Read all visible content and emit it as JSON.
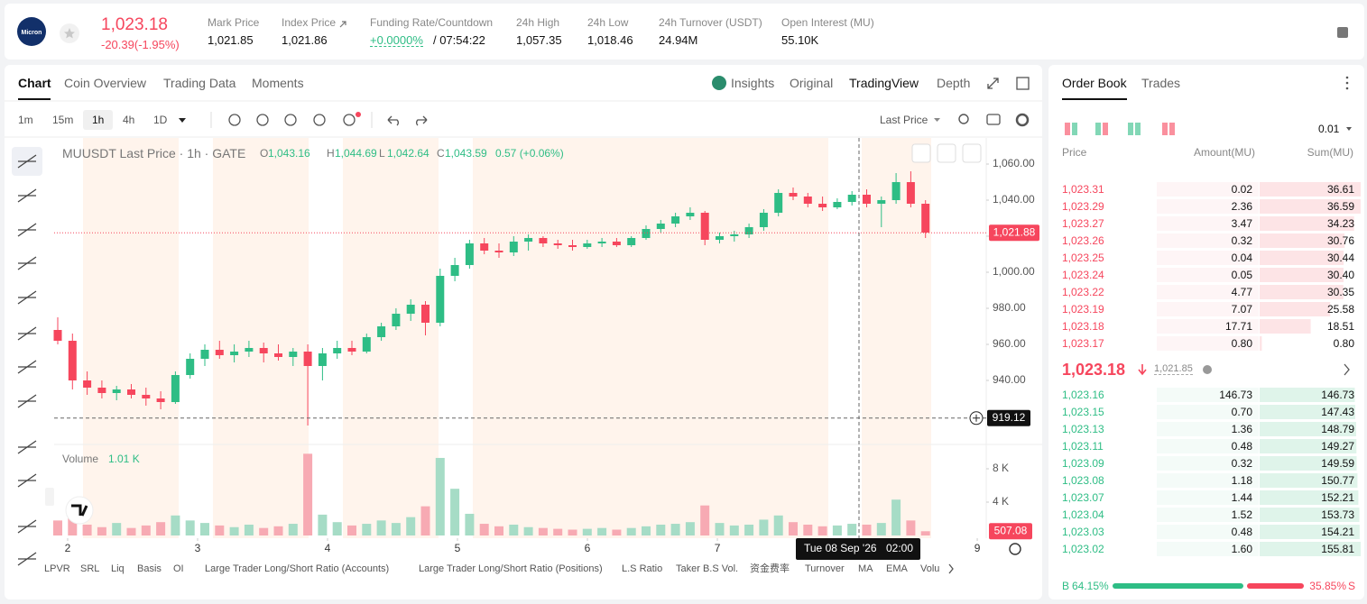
{
  "header": {
    "logo": "Micron",
    "price": "1,023.18",
    "change": "-20.39(-1.95%)",
    "stats": [
      {
        "label": "Mark Price",
        "value": "1,021.85"
      },
      {
        "label": "Index Price",
        "value": "1,021.86"
      },
      {
        "label": "Funding Rate/Countdown",
        "value": "+0.0000%",
        "extra": "/ 07:54:22"
      },
      {
        "label": "24h High",
        "value": "1,057.35"
      },
      {
        "label": "24h Low",
        "value": "1,018.46"
      },
      {
        "label": "24h Turnover (USDT)",
        "value": "24.94M"
      },
      {
        "label": "Open Interest (MU)",
        "value": "55.10K"
      }
    ]
  },
  "tabs": {
    "main": [
      "Chart",
      "Coin Overview",
      "Trading Data",
      "Moments"
    ],
    "views": [
      "Insights",
      "Original",
      "TradingView",
      "Depth"
    ]
  },
  "toolbar": {
    "intervals": [
      "1m",
      "15m",
      "1h",
      "4h",
      "1D"
    ],
    "price_type": "Last Price"
  },
  "chart_data": {
    "type": "candlestick",
    "title": "MUUSDT Last Price · 1h · GATE",
    "ohlc": [
      {
        "label": "O",
        "value": "1,043.16"
      },
      {
        "label": "H",
        "value": "1,044.69"
      },
      {
        "label": "L",
        "value": "1,042.64"
      },
      {
        "label": "C",
        "value": "1,043.59"
      }
    ],
    "change": "0.57 (+0.06%)",
    "candles": [
      [
        968,
        975,
        960,
        962
      ],
      [
        962,
        966,
        935,
        940
      ],
      [
        940,
        945,
        932,
        936
      ],
      [
        936,
        940,
        930,
        933
      ],
      [
        933,
        937,
        929,
        935
      ],
      [
        935,
        938,
        930,
        932
      ],
      [
        932,
        936,
        926,
        930
      ],
      [
        930,
        934,
        924,
        928
      ],
      [
        928,
        945,
        927,
        943
      ],
      [
        943,
        955,
        941,
        952
      ],
      [
        952,
        960,
        948,
        957
      ],
      [
        957,
        962,
        952,
        954
      ],
      [
        954,
        960,
        950,
        956
      ],
      [
        956,
        962,
        953,
        958
      ],
      [
        958,
        961,
        950,
        955
      ],
      [
        955,
        960,
        951,
        953
      ],
      [
        953,
        958,
        948,
        956
      ],
      [
        956,
        960,
        915,
        948
      ],
      [
        948,
        958,
        940,
        955
      ],
      [
        955,
        962,
        952,
        958
      ],
      [
        958,
        962,
        954,
        956
      ],
      [
        956,
        966,
        955,
        964
      ],
      [
        964,
        972,
        962,
        970
      ],
      [
        970,
        980,
        968,
        977
      ],
      [
        977,
        985,
        973,
        982
      ],
      [
        982,
        984,
        965,
        972
      ],
      [
        972,
        1002,
        970,
        998
      ],
      [
        998,
        1008,
        995,
        1004
      ],
      [
        1004,
        1018,
        1002,
        1016
      ],
      [
        1016,
        1019,
        1010,
        1012
      ],
      [
        1012,
        1016,
        1008,
        1011
      ],
      [
        1011,
        1020,
        1009,
        1017
      ],
      [
        1017,
        1021,
        1012,
        1019
      ],
      [
        1019,
        1020,
        1014,
        1016
      ],
      [
        1016,
        1018,
        1013,
        1015
      ],
      [
        1015,
        1018,
        1012,
        1014
      ],
      [
        1014,
        1018,
        1013,
        1016
      ],
      [
        1016,
        1019,
        1014,
        1017
      ],
      [
        1017,
        1019,
        1014,
        1015
      ],
      [
        1015,
        1020,
        1014,
        1019
      ],
      [
        1019,
        1026,
        1018,
        1024
      ],
      [
        1024,
        1029,
        1022,
        1027
      ],
      [
        1027,
        1033,
        1025,
        1031
      ],
      [
        1031,
        1036,
        1029,
        1033
      ],
      [
        1033,
        1034,
        1015,
        1018
      ],
      [
        1018,
        1022,
        1016,
        1020
      ],
      [
        1020,
        1023,
        1017,
        1021
      ],
      [
        1021,
        1027,
        1019,
        1025
      ],
      [
        1025,
        1035,
        1023,
        1033
      ],
      [
        1033,
        1046,
        1031,
        1044
      ],
      [
        1044,
        1047,
        1040,
        1042
      ],
      [
        1042,
        1044,
        1036,
        1038
      ],
      [
        1038,
        1042,
        1034,
        1036
      ],
      [
        1036,
        1041,
        1035,
        1039
      ],
      [
        1039,
        1045,
        1037,
        1043
      ],
      [
        1043,
        1046,
        1036,
        1038
      ],
      [
        1038,
        1042,
        1025,
        1040
      ],
      [
        1040,
        1055,
        1038,
        1050
      ],
      [
        1050,
        1056,
        1036,
        1038
      ],
      [
        1038,
        1040,
        1019,
        1022
      ]
    ],
    "ylim": [
      905,
      1074.5
    ],
    "yticks": [
      {
        "value": 1060,
        "label": "1,060.00"
      },
      {
        "value": 1040,
        "label": "1,040.00"
      },
      {
        "value": 1020,
        "label": "1,020.00"
      },
      {
        "value": 1000,
        "label": "1,000.00"
      },
      {
        "value": 980,
        "label": "980.00"
      },
      {
        "value": 960,
        "label": "960.00"
      },
      {
        "value": 940,
        "label": "940.00"
      }
    ],
    "last_price": {
      "value": 1021.88,
      "label": "1,021.88"
    },
    "crosshair_price": 919.12,
    "crosshair_time": [
      "Tue 08 Sep '26",
      "02:00"
    ],
    "xlim": [
      1.896,
      9.069
    ],
    "xticks": [
      2,
      3,
      4,
      5,
      6,
      7,
      9
    ],
    "volume": {
      "title": "Volume",
      "value_label": "1.01 K",
      "values": [
        1.8,
        2.2,
        1.3,
        1.0,
        1.5,
        0.9,
        1.2,
        1.6,
        2.4,
        1.8,
        1.5,
        1.2,
        1.0,
        1.3,
        0.9,
        1.1,
        1.4,
        9.8,
        2.5,
        1.6,
        1.2,
        1.4,
        1.8,
        1.5,
        2.2,
        3.5,
        9.3,
        5.6,
        2.6,
        1.4,
        1.1,
        1.3,
        1.0,
        0.9,
        0.8,
        0.7,
        0.8,
        0.9,
        0.7,
        0.9,
        1.1,
        1.3,
        1.4,
        1.6,
        3.6,
        1.5,
        1.2,
        1.3,
        1.9,
        2.4,
        1.6,
        1.3,
        1.1,
        1.2,
        1.4,
        1.3,
        1.5,
        4.3,
        1.8,
        0.51
      ],
      "ylim": [
        0,
        10.7
      ],
      "yticks": [
        {
          "value": 8,
          "label": "8 K"
        },
        {
          "value": 4,
          "label": "4 K"
        }
      ],
      "last": {
        "value": 0.50708,
        "label": "507.08"
      }
    }
  },
  "indicators": [
    "LPVR",
    "SRL",
    "Liq",
    "Basis",
    "OI",
    "Large Trader Long/Short Ratio (Accounts)",
    "Large Trader Long/Short Ratio (Positions)",
    "L.S Ratio",
    "Taker B.S Vol.",
    "资金费率",
    "Turnover",
    "MA",
    "EMA",
    "Volu"
  ],
  "order_book": {
    "tabs": [
      "Order Book",
      "Trades"
    ],
    "precision": "0.01",
    "headers": [
      "Price",
      "Amount(MU)",
      "Sum(MU)"
    ],
    "asks": [
      [
        "1,023.31",
        "0.02",
        "36.61"
      ],
      [
        "1,023.29",
        "2.36",
        "36.59"
      ],
      [
        "1,023.27",
        "3.47",
        "34.23"
      ],
      [
        "1,023.26",
        "0.32",
        "30.76"
      ],
      [
        "1,023.25",
        "0.04",
        "30.44"
      ],
      [
        "1,023.24",
        "0.05",
        "30.40"
      ],
      [
        "1,023.22",
        "4.77",
        "30.35"
      ],
      [
        "1,023.19",
        "7.07",
        "25.58"
      ],
      [
        "1,023.18",
        "17.71",
        "18.51"
      ],
      [
        "1,023.17",
        "0.80",
        "0.80"
      ]
    ],
    "last_price": "1,023.18",
    "mark_price": "1,021.85",
    "bids": [
      [
        "1,023.16",
        "146.73",
        "146.73"
      ],
      [
        "1,023.15",
        "0.70",
        "147.43"
      ],
      [
        "1,023.13",
        "1.36",
        "148.79"
      ],
      [
        "1,023.11",
        "0.48",
        "149.27"
      ],
      [
        "1,023.09",
        "0.32",
        "149.59"
      ],
      [
        "1,023.08",
        "1.18",
        "150.77"
      ],
      [
        "1,023.07",
        "1.44",
        "152.21"
      ],
      [
        "1,023.04",
        "1.52",
        "153.73"
      ],
      [
        "1,023.03",
        "0.48",
        "154.21"
      ],
      [
        "1,023.02",
        "1.60",
        "155.81"
      ]
    ],
    "buy_label": "B",
    "buy_ratio": "64.15%",
    "sell_ratio": "35.85%",
    "sell_label": "S"
  }
}
